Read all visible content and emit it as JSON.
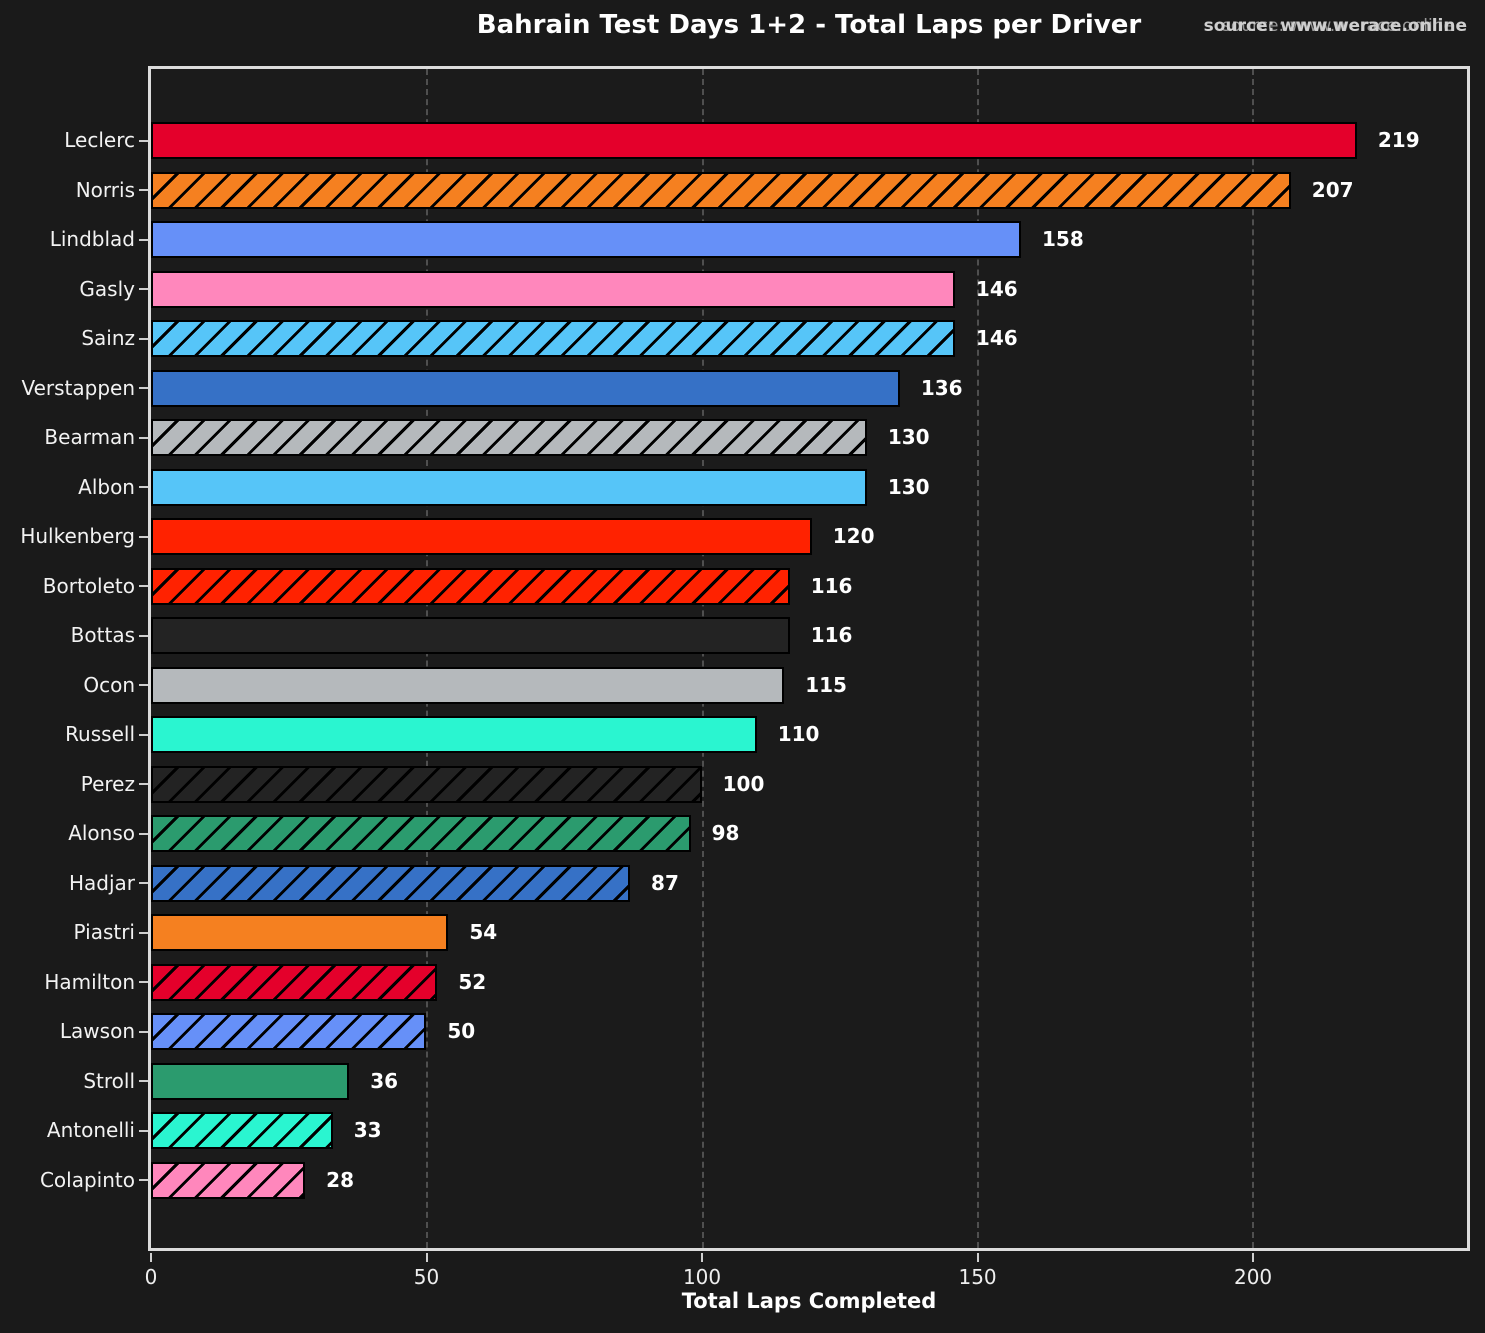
{
  "title": "Bahrain Test Days 1+2 - Total Laps per Driver",
  "source": {
    "text": "source: www.werace.online"
  },
  "xlabel": "Total Laps Completed",
  "colors": {
    "background": "#1A1A1A",
    "plot_background": "#1B1B1B",
    "spine": "#DCDCDC",
    "grid": "#4f4f4f",
    "bar_edge": "#000000",
    "text": "#FFFFFF"
  },
  "chart_data": {
    "type": "bar",
    "orientation": "horizontal",
    "title": "Bahrain Test Days 1+2 - Total Laps per Driver",
    "xlabel": "Total Laps Completed",
    "ylabel": "",
    "xlim": [
      0,
      239
    ],
    "xticks": [
      0,
      50,
      100,
      150,
      200
    ],
    "grid": {
      "axis": "x",
      "style": "dashed"
    },
    "legend": "none",
    "categories": [
      "Leclerc",
      "Norris",
      "Lindblad",
      "Gasly",
      "Sainz",
      "Verstappen",
      "Bearman",
      "Albon",
      "Hulkenberg",
      "Bortoleto",
      "Bottas",
      "Ocon",
      "Russell",
      "Perez",
      "Alonso",
      "Hadjar",
      "Piastri",
      "Hamilton",
      "Lawson",
      "Stroll",
      "Antonelli",
      "Colapinto"
    ],
    "values": [
      219,
      207,
      158,
      146,
      146,
      136,
      130,
      130,
      120,
      116,
      116,
      115,
      110,
      100,
      98,
      87,
      54,
      52,
      50,
      36,
      33,
      28
    ],
    "bars": [
      {
        "driver": "Leclerc",
        "laps": 219,
        "color": "#E4002B",
        "hatched": false
      },
      {
        "driver": "Norris",
        "laps": 207,
        "color": "#F58020",
        "hatched": true
      },
      {
        "driver": "Lindblad",
        "laps": 158,
        "color": "#6690F8",
        "hatched": false
      },
      {
        "driver": "Gasly",
        "laps": 146,
        "color": "#FF87BC",
        "hatched": false
      },
      {
        "driver": "Sainz",
        "laps": 146,
        "color": "#56C5F8",
        "hatched": true
      },
      {
        "driver": "Verstappen",
        "laps": 136,
        "color": "#3671C6",
        "hatched": false
      },
      {
        "driver": "Bearman",
        "laps": 130,
        "color": "#B5B9BC",
        "hatched": true
      },
      {
        "driver": "Albon",
        "laps": 130,
        "color": "#56C5F8",
        "hatched": false
      },
      {
        "driver": "Hulkenberg",
        "laps": 120,
        "color": "#FF2200",
        "hatched": false
      },
      {
        "driver": "Bortoleto",
        "laps": 116,
        "color": "#FF2200",
        "hatched": true
      },
      {
        "driver": "Bottas",
        "laps": 116,
        "color": "#232323",
        "hatched": false
      },
      {
        "driver": "Ocon",
        "laps": 115,
        "color": "#B5B9BC",
        "hatched": false
      },
      {
        "driver": "Russell",
        "laps": 110,
        "color": "#2AF5D0",
        "hatched": false
      },
      {
        "driver": "Perez",
        "laps": 100,
        "color": "#232323",
        "hatched": true
      },
      {
        "driver": "Alonso",
        "laps": 98,
        "color": "#2B9B6E",
        "hatched": true
      },
      {
        "driver": "Hadjar",
        "laps": 87,
        "color": "#3671C6",
        "hatched": true
      },
      {
        "driver": "Piastri",
        "laps": 54,
        "color": "#F58020",
        "hatched": false
      },
      {
        "driver": "Hamilton",
        "laps": 52,
        "color": "#E4002B",
        "hatched": true
      },
      {
        "driver": "Lawson",
        "laps": 50,
        "color": "#6690F8",
        "hatched": true
      },
      {
        "driver": "Stroll",
        "laps": 36,
        "color": "#2B9B6E",
        "hatched": false
      },
      {
        "driver": "Antonelli",
        "laps": 33,
        "color": "#2AF5D0",
        "hatched": true
      },
      {
        "driver": "Colapinto",
        "laps": 28,
        "color": "#FF87BC",
        "hatched": true
      }
    ]
  }
}
